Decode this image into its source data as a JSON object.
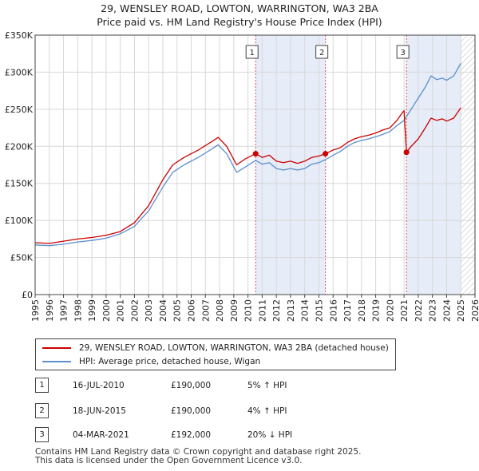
{
  "title_line1": "29, WENSLEY ROAD, LOWTON, WARRINGTON, WA3 2BA",
  "title_line2": "Price paid vs. HM Land Registry's House Price Index (HPI)",
  "colors": {
    "price": "#cc0000",
    "hpi": "#5b8fd0",
    "shade": "#e6ecf8",
    "vline": "#e05050",
    "grid": "#d8d8d8"
  },
  "chart_data": {
    "type": "line",
    "x_range": [
      1995,
      2026
    ],
    "ylim": [
      0,
      350000
    ],
    "y_ticks": [
      {
        "value": 0,
        "label": "£0"
      },
      {
        "value": 50000,
        "label": "£50K"
      },
      {
        "value": 100000,
        "label": "£100K"
      },
      {
        "value": 150000,
        "label": "£150K"
      },
      {
        "value": 200000,
        "label": "£200K"
      },
      {
        "value": 250000,
        "label": "£250K"
      },
      {
        "value": 300000,
        "label": "£300K"
      },
      {
        "value": 350000,
        "label": "£350K"
      }
    ],
    "x_ticks": [
      "1995",
      "1996",
      "1997",
      "1998",
      "1999",
      "2000",
      "2001",
      "2002",
      "2003",
      "2004",
      "2005",
      "2006",
      "2007",
      "2008",
      "2009",
      "2010",
      "2011",
      "2012",
      "2013",
      "2014",
      "2015",
      "2016",
      "2017",
      "2018",
      "2019",
      "2020",
      "2021",
      "2022",
      "2023",
      "2024",
      "2025",
      "2026"
    ],
    "shaded_ranges": [
      [
        2010.54,
        2015.46
      ],
      [
        2021.17,
        2025.0
      ]
    ],
    "hatched_range": [
      2025.0,
      2026.0
    ],
    "series": [
      {
        "name": "29, WENSLEY ROAD, LOWTON, WARRINGTON, WA3 2BA (detached house)",
        "points": [
          [
            1995.0,
            70000
          ],
          [
            1996.0,
            69000
          ],
          [
            1997.0,
            72000
          ],
          [
            1998.0,
            75000
          ],
          [
            1999.0,
            77000
          ],
          [
            2000.0,
            80000
          ],
          [
            2001.0,
            85000
          ],
          [
            2002.0,
            97000
          ],
          [
            2003.0,
            120000
          ],
          [
            2004.0,
            155000
          ],
          [
            2004.7,
            175000
          ],
          [
            2005.5,
            185000
          ],
          [
            2006.5,
            195000
          ],
          [
            2007.5,
            207000
          ],
          [
            2007.9,
            212000
          ],
          [
            2008.5,
            200000
          ],
          [
            2009.2,
            175000
          ],
          [
            2009.8,
            183000
          ],
          [
            2010.54,
            190000
          ],
          [
            2011.0,
            185000
          ],
          [
            2011.5,
            188000
          ],
          [
            2012.0,
            180000
          ],
          [
            2012.5,
            178000
          ],
          [
            2013.0,
            180000
          ],
          [
            2013.5,
            177000
          ],
          [
            2014.0,
            180000
          ],
          [
            2014.5,
            185000
          ],
          [
            2015.0,
            187000
          ],
          [
            2015.46,
            190000
          ],
          [
            2016.0,
            195000
          ],
          [
            2016.5,
            198000
          ],
          [
            2017.0,
            205000
          ],
          [
            2017.5,
            210000
          ],
          [
            2018.0,
            213000
          ],
          [
            2018.5,
            215000
          ],
          [
            2019.0,
            218000
          ],
          [
            2019.5,
            222000
          ],
          [
            2020.0,
            225000
          ],
          [
            2020.5,
            235000
          ],
          [
            2020.9,
            246000
          ],
          [
            2021.0,
            248000
          ],
          [
            2021.17,
            192000
          ],
          [
            2021.5,
            200000
          ],
          [
            2022.0,
            210000
          ],
          [
            2022.5,
            225000
          ],
          [
            2022.9,
            238000
          ],
          [
            2023.3,
            235000
          ],
          [
            2023.7,
            237000
          ],
          [
            2024.0,
            234000
          ],
          [
            2024.5,
            238000
          ],
          [
            2025.0,
            252000
          ]
        ]
      },
      {
        "name": "HPI: Average price, detached house, Wigan",
        "points": [
          [
            1995.0,
            67000
          ],
          [
            1996.0,
            66000
          ],
          [
            1997.0,
            68000
          ],
          [
            1998.0,
            71000
          ],
          [
            1999.0,
            73000
          ],
          [
            2000.0,
            76000
          ],
          [
            2001.0,
            82000
          ],
          [
            2002.0,
            92000
          ],
          [
            2003.0,
            113000
          ],
          [
            2004.0,
            145000
          ],
          [
            2004.7,
            165000
          ],
          [
            2005.5,
            175000
          ],
          [
            2006.5,
            185000
          ],
          [
            2007.5,
            197000
          ],
          [
            2007.9,
            202000
          ],
          [
            2008.5,
            190000
          ],
          [
            2009.2,
            165000
          ],
          [
            2009.8,
            172000
          ],
          [
            2010.54,
            181000
          ],
          [
            2011.0,
            176000
          ],
          [
            2011.5,
            178000
          ],
          [
            2012.0,
            170000
          ],
          [
            2012.5,
            168000
          ],
          [
            2013.0,
            170000
          ],
          [
            2013.5,
            168000
          ],
          [
            2014.0,
            170000
          ],
          [
            2014.5,
            176000
          ],
          [
            2015.0,
            178000
          ],
          [
            2015.46,
            182000
          ],
          [
            2016.0,
            188000
          ],
          [
            2016.5,
            193000
          ],
          [
            2017.0,
            200000
          ],
          [
            2017.5,
            205000
          ],
          [
            2018.0,
            208000
          ],
          [
            2018.5,
            210000
          ],
          [
            2019.0,
            213000
          ],
          [
            2019.5,
            216000
          ],
          [
            2020.0,
            220000
          ],
          [
            2020.5,
            228000
          ],
          [
            2021.0,
            235000
          ],
          [
            2021.5,
            250000
          ],
          [
            2022.0,
            265000
          ],
          [
            2022.5,
            280000
          ],
          [
            2022.9,
            295000
          ],
          [
            2023.3,
            290000
          ],
          [
            2023.7,
            292000
          ],
          [
            2024.0,
            289000
          ],
          [
            2024.5,
            295000
          ],
          [
            2025.0,
            312000
          ]
        ]
      }
    ],
    "sales": [
      {
        "label": "1",
        "x": 2010.54,
        "price": 190000
      },
      {
        "label": "2",
        "x": 2015.46,
        "price": 190000
      },
      {
        "label": "3",
        "x": 2021.17,
        "price": 192000
      }
    ]
  },
  "legend": {
    "price_label": "29, WENSLEY ROAD, LOWTON, WARRINGTON, WA3 2BA (detached house)",
    "hpi_label": "HPI: Average price, detached house, Wigan"
  },
  "transactions": [
    {
      "num": "1",
      "date": "16-JUL-2010",
      "price": "£190,000",
      "hpi": "5% ↑ HPI"
    },
    {
      "num": "2",
      "date": "18-JUN-2015",
      "price": "£190,000",
      "hpi": "4% ↑ HPI"
    },
    {
      "num": "3",
      "date": "04-MAR-2021",
      "price": "£192,000",
      "hpi": "20% ↓ HPI"
    }
  ],
  "footer": {
    "line1": "Contains HM Land Registry data © Crown copyright and database right 2025.",
    "line2": "This data is licensed under the Open Government Licence v3.0."
  }
}
